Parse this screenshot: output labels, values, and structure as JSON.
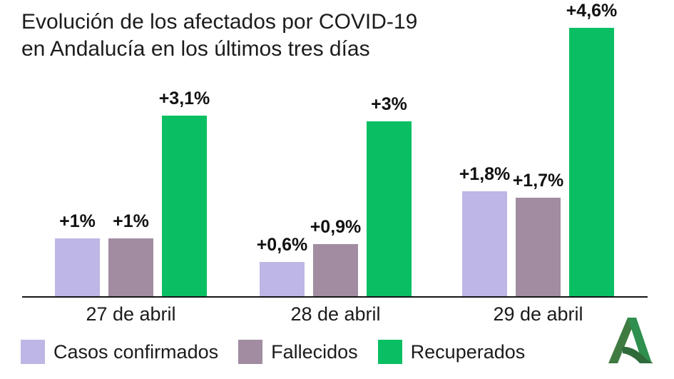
{
  "title_lines": [
    "Evolución de los afectados por COVID-19",
    "en Andalucía en los últimos tres días"
  ],
  "chart_data": {
    "type": "bar",
    "title": "Evolución de los afectados por COVID-19 en Andalucía en los últimos tres días",
    "categories": [
      "27 de abril",
      "28 de abril",
      "29 de abril"
    ],
    "series": [
      {
        "name": "Casos confirmados",
        "color": "#beb6e5",
        "values": [
          1.0,
          0.6,
          1.8
        ],
        "value_labels": [
          "+1%",
          "+0,6%",
          "+1,8%"
        ]
      },
      {
        "name": "Fallecidos",
        "color": "#a18ca1",
        "values": [
          1.0,
          0.9,
          1.7
        ],
        "value_labels": [
          "+1%",
          "+0,9%",
          "+1,7%"
        ]
      },
      {
        "name": "Recuperados",
        "color": "#0abf63",
        "values": [
          3.1,
          3.0,
          4.6
        ],
        "value_labels": [
          "+3,1%",
          "+3%",
          "+4,6%"
        ]
      }
    ],
    "unit": "%",
    "ylim": [
      0,
      4.6
    ],
    "grid": false,
    "legend_position": "bottom"
  },
  "logo": {
    "name": "Junta de Andalucía",
    "colors": {
      "left": "#3f7b41",
      "right": "#2e8f4e",
      "swoosh": "#2f6b3a"
    }
  }
}
